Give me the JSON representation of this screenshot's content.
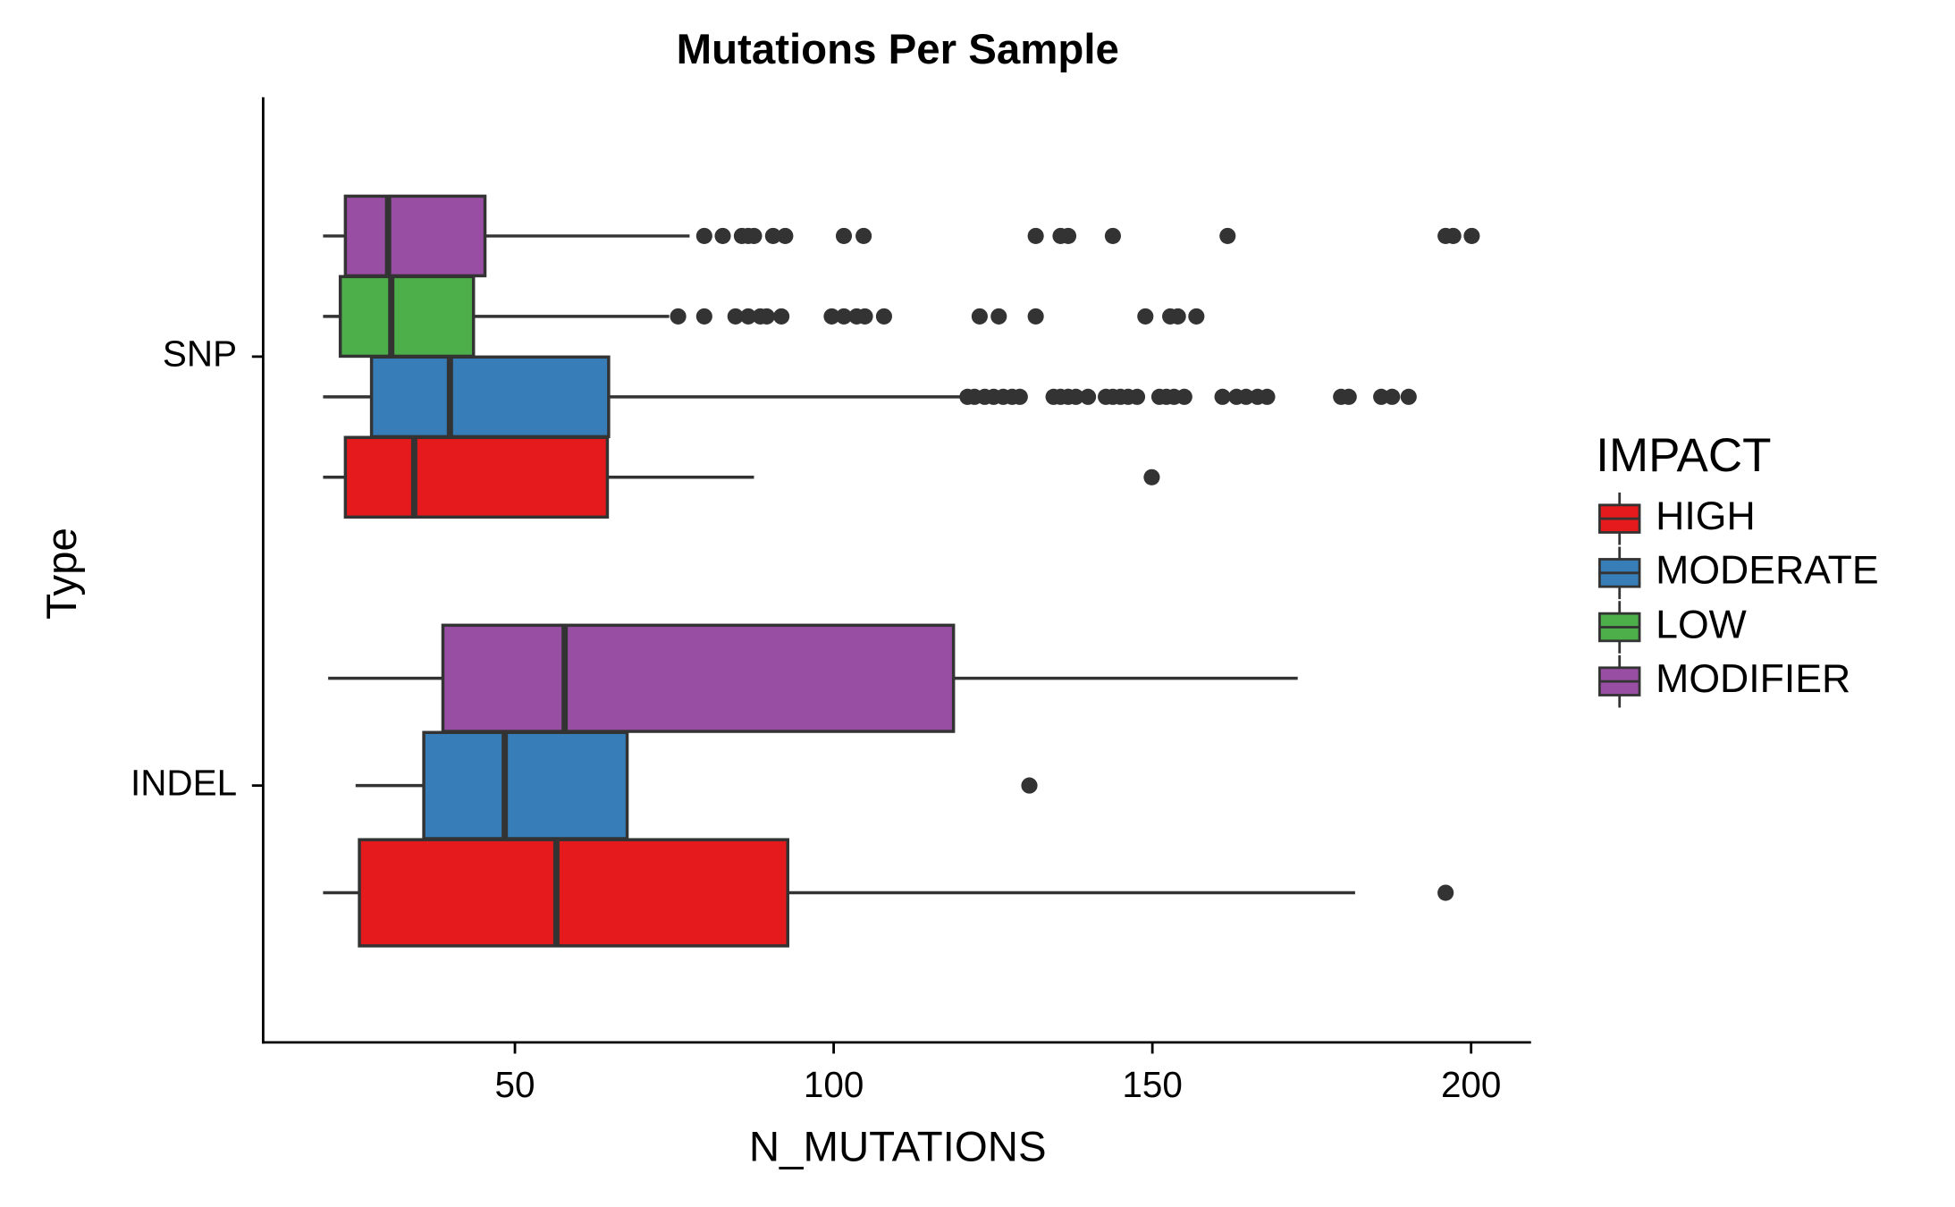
{
  "chart_data": {
    "type": "boxplot",
    "orientation": "horizontal",
    "title": "Mutations Per Sample",
    "x_label": "N_MUTATIONS",
    "y_label": "Type",
    "legend_title": "IMPACT",
    "legend_position": "right",
    "categories": [
      "SNP",
      "INDEL"
    ],
    "xlim": [
      10.5,
      209.4
    ],
    "xticks": [
      50,
      100,
      150,
      200
    ],
    "series": [
      {
        "name": "HIGH",
        "color": "#e41a1c",
        "boxes": [
          {
            "whislo": 19.9,
            "q1": 23.4,
            "med": 34.2,
            "q3": 64.5,
            "whishi": 87.5,
            "fliers": [
              149.9
            ]
          },
          {
            "whislo": 19.9,
            "q1": 25.6,
            "med": 56.5,
            "q3": 92.8,
            "whishi": 181.8,
            "fliers": [
              196.0
            ]
          }
        ]
      },
      {
        "name": "MODERATE",
        "color": "#377eb8",
        "boxes": [
          {
            "whislo": 19.9,
            "q1": 27.5,
            "med": 39.8,
            "q3": 64.7,
            "whishi": 120.0,
            "fliers": [
              121.0,
              122.1,
              123.7,
              125.1,
              126.6,
              128.0,
              129.2,
              134.5,
              135.6,
              136.8,
              138.0,
              139.9,
              142.7,
              143.8,
              145.0,
              146.2,
              147.6,
              151.1,
              152.2,
              153.4,
              155.0,
              161.0,
              163.2,
              164.7,
              166.5,
              168.0,
              179.6,
              180.8,
              185.9,
              187.6,
              190.2
            ]
          },
          {
            "whislo": 25.0,
            "q1": 35.7,
            "med": 48.4,
            "q3": 67.6,
            "whishi": 67.6,
            "fliers": [
              130.7
            ]
          }
        ]
      },
      {
        "name": "LOW",
        "color": "#4daf4a",
        "boxes": [
          {
            "whislo": 19.9,
            "q1": 22.6,
            "med": 30.6,
            "q3": 43.5,
            "whishi": 74.2,
            "fliers": [
              75.6,
              79.7,
              84.6,
              86.6,
              88.5,
              89.5,
              91.8,
              99.7,
              101.6,
              103.6,
              104.9,
              107.9,
              122.9,
              125.9,
              131.7,
              148.9,
              152.8,
              154.0,
              156.9
            ]
          },
          null
        ]
      },
      {
        "name": "MODIFIER",
        "color": "#984ea3",
        "boxes": [
          {
            "whislo": 19.9,
            "q1": 23.4,
            "med": 30.1,
            "q3": 45.3,
            "whishi": 77.4,
            "fliers": [
              79.7,
              82.6,
              85.6,
              86.6,
              87.5,
              90.5,
              92.4,
              101.6,
              104.7,
              131.7,
              135.6,
              136.8,
              143.8,
              161.8,
              196.0,
              197.2,
              200.1
            ]
          },
          {
            "whislo": 20.7,
            "q1": 38.7,
            "med": 57.8,
            "q3": 118.8,
            "whishi": 172.8,
            "fliers": []
          }
        ]
      }
    ]
  }
}
